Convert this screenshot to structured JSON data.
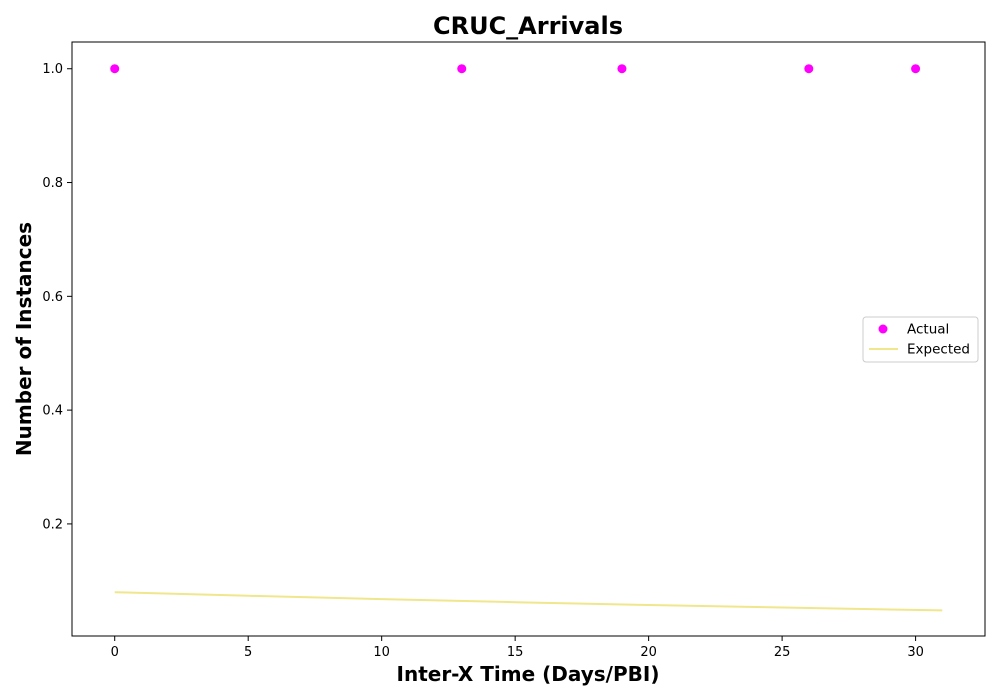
{
  "chart_data": {
    "type": "scatter",
    "title": "CRUC_Arrivals",
    "xlabel": "Inter-X Time (Days/PBI)",
    "ylabel": "Number of Instances",
    "xlim": [
      -1.6,
      32.6
    ],
    "ylim": [
      0.003,
      1.047
    ],
    "x_ticks": [
      {
        "value": 0,
        "label": "0"
      },
      {
        "value": 5,
        "label": "5"
      },
      {
        "value": 10,
        "label": "10"
      },
      {
        "value": 15,
        "label": "15"
      },
      {
        "value": 20,
        "label": "20"
      },
      {
        "value": 25,
        "label": "25"
      },
      {
        "value": 30,
        "label": "30"
      }
    ],
    "y_ticks": [
      {
        "value": 0.2,
        "label": "0.2"
      },
      {
        "value": 0.4,
        "label": "0.4"
      },
      {
        "value": 0.6,
        "label": "0.6"
      },
      {
        "value": 0.8,
        "label": "0.8"
      },
      {
        "value": 1.0,
        "label": "1.0"
      }
    ],
    "grid": false,
    "legend_position": "center-right",
    "series": [
      {
        "name": "Actual",
        "kind": "scatter",
        "color": "#ff00ff",
        "points": [
          {
            "x": 0,
            "y": 1.0
          },
          {
            "x": 13,
            "y": 1.0
          },
          {
            "x": 19,
            "y": 1.0
          },
          {
            "x": 26,
            "y": 1.0
          },
          {
            "x": 30,
            "y": 1.0
          }
        ]
      },
      {
        "name": "Expected",
        "kind": "line",
        "color": "#f0e68c",
        "points": [
          {
            "x": 0,
            "y": 0.08
          },
          {
            "x": 5,
            "y": 0.0737
          },
          {
            "x": 10,
            "y": 0.0678
          },
          {
            "x": 15,
            "y": 0.0624
          },
          {
            "x": 20,
            "y": 0.0575
          },
          {
            "x": 25,
            "y": 0.053
          },
          {
            "x": 31,
            "y": 0.048
          }
        ]
      }
    ]
  }
}
